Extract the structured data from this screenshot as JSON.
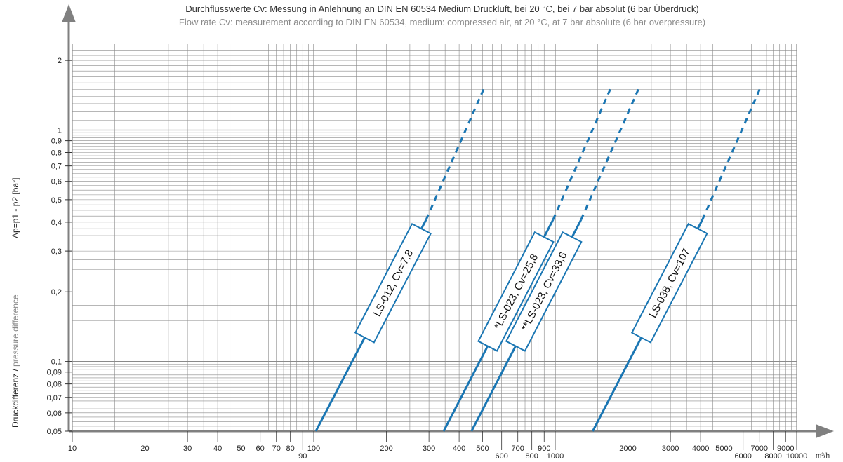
{
  "title_de": "Durchflusswerte Cv: Messung in Anlehnung an DIN EN 60534 Medium Druckluft, bei 20 °C, bei 7 bar absolut (6 bar Überdruck)",
  "title_en": "Flow rate Cv: measurement according to DIN EN 60534, medium: compressed air, at 20 °C, at 7 bar absolute (6 bar overpressure)",
  "ylabel_de": "Druckdifferenz / ",
  "ylabel_en": "pressure difference",
  "ylabel_formula": "Δp=p1 - p2 [bar]",
  "xunit": "m³/h",
  "colors": {
    "line": "#1a76b3",
    "grid": "#8a8a8a",
    "axis": "#808080",
    "label_border": "#1a76b3"
  },
  "chart_data": {
    "type": "line",
    "x_scale": "log",
    "y_scale": "log",
    "xlim": [
      10,
      10000
    ],
    "ylim": [
      0.05,
      2
    ],
    "grid": true,
    "x_ticks_upper": [
      "10",
      "20",
      "30",
      "40",
      "50",
      "60",
      "70",
      "80",
      "100",
      "200",
      "300",
      "400",
      "500",
      "700",
      "900",
      "2000",
      "3000",
      "4000",
      "5000",
      "7000",
      "9000"
    ],
    "x_ticks_lower": [
      "90",
      "600",
      "800",
      "1000",
      "6000",
      "8000",
      "10000"
    ],
    "x_tick_values_upper": [
      10,
      20,
      30,
      40,
      50,
      60,
      70,
      80,
      100,
      200,
      300,
      400,
      500,
      700,
      900,
      2000,
      3000,
      4000,
      5000,
      7000,
      9000
    ],
    "x_tick_values_lower": [
      90,
      600,
      800,
      1000,
      6000,
      8000,
      10000
    ],
    "y_ticks": [
      "0,05",
      "0,06",
      "0,07",
      "0,08",
      "0,09",
      "0,1",
      "0,2",
      "0,3",
      "0,4",
      "0,5",
      "0,6",
      "0,7",
      "0,8",
      "0,9",
      "1",
      "2"
    ],
    "y_tick_values": [
      0.05,
      0.06,
      0.07,
      0.08,
      0.09,
      0.1,
      0.2,
      0.3,
      0.4,
      0.5,
      0.6,
      0.7,
      0.8,
      0.9,
      1,
      2
    ],
    "series": [
      {
        "name": "LS-012, Cv=7,8",
        "x_solid": [
          102,
          292
        ],
        "y_solid": [
          0.05,
          0.41
        ],
        "x_dashed": [
          292,
          505
        ],
        "y_dashed": [
          0.41,
          1.5
        ]
      },
      {
        "name": "*LS-023, Cv=25,8",
        "x_solid": [
          345,
          980
        ],
        "y_solid": [
          0.05,
          0.41
        ],
        "x_dashed": [
          980,
          1690
        ],
        "y_dashed": [
          0.41,
          1.5
        ]
      },
      {
        "name": "**LS-023, Cv=33,6",
        "x_solid": [
          450,
          1280
        ],
        "y_solid": [
          0.05,
          0.41
        ],
        "x_dashed": [
          1280,
          2210
        ],
        "y_dashed": [
          0.41,
          1.5
        ]
      },
      {
        "name": "LS-038, Cv=107",
        "x_solid": [
          1430,
          4070
        ],
        "y_solid": [
          0.05,
          0.41
        ],
        "x_dashed": [
          4070,
          7030
        ],
        "y_dashed": [
          0.41,
          1.5
        ]
      }
    ]
  }
}
